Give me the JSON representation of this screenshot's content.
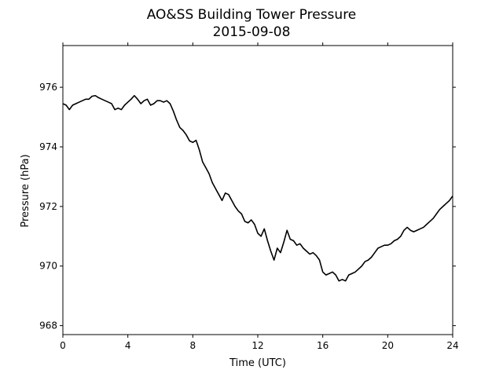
{
  "chart_data": {
    "type": "line",
    "title": "AO&SS Building Tower Pressure",
    "subtitle": "2015-09-08",
    "xlabel": "Time (UTC)",
    "ylabel": "Pressure (hPa)",
    "xlim": [
      0,
      24
    ],
    "ylim": [
      967.7,
      977.4
    ],
    "xticks": [
      0,
      4,
      8,
      12,
      16,
      20,
      24
    ],
    "yticks": [
      968,
      970,
      972,
      974,
      976
    ],
    "grid": false,
    "line_color": "#000000",
    "series": [
      {
        "x": [
          0,
          0.2,
          0.4,
          0.6,
          0.8,
          1.0,
          1.2,
          1.4,
          1.6,
          1.8,
          2.0,
          2.2,
          2.4,
          2.6,
          2.8,
          3.0,
          3.2,
          3.4,
          3.6,
          3.8,
          4.0,
          4.2,
          4.4,
          4.6,
          4.8,
          5.0,
          5.2,
          5.4,
          5.6,
          5.8,
          6.0,
          6.2,
          6.4,
          6.6,
          6.8,
          7.0,
          7.2,
          7.4,
          7.6,
          7.8,
          8.0,
          8.2,
          8.4,
          8.6,
          8.8,
          9.0,
          9.2,
          9.4,
          9.6,
          9.8,
          10.0,
          10.2,
          10.4,
          10.6,
          10.8,
          11.0,
          11.2,
          11.4,
          11.6,
          11.8,
          12.0,
          12.2,
          12.4,
          12.6,
          12.8,
          13.0,
          13.2,
          13.4,
          13.6,
          13.8,
          14.0,
          14.2,
          14.4,
          14.6,
          14.8,
          15.0,
          15.2,
          15.4,
          15.6,
          15.8,
          16.0,
          16.2,
          16.4,
          16.6,
          16.8,
          17.0,
          17.2,
          17.4,
          17.6,
          17.8,
          18.0,
          18.2,
          18.4,
          18.6,
          18.8,
          19.0,
          19.2,
          19.4,
          19.6,
          19.8,
          20.0,
          20.2,
          20.4,
          20.6,
          20.8,
          21.0,
          21.2,
          21.4,
          21.6,
          21.8,
          22.0,
          22.2,
          22.4,
          22.6,
          22.8,
          23.0,
          23.2,
          23.4,
          23.6,
          23.8,
          24.0
        ],
        "y": [
          975.45,
          975.4,
          975.25,
          975.4,
          975.45,
          975.5,
          975.55,
          975.6,
          975.6,
          975.7,
          975.72,
          975.65,
          975.6,
          975.55,
          975.5,
          975.45,
          975.25,
          975.3,
          975.25,
          975.4,
          975.5,
          975.6,
          975.72,
          975.6,
          975.45,
          975.55,
          975.6,
          975.4,
          975.45,
          975.55,
          975.55,
          975.5,
          975.55,
          975.45,
          975.2,
          974.9,
          974.65,
          974.55,
          974.4,
          974.2,
          974.15,
          974.22,
          973.9,
          973.5,
          973.3,
          973.1,
          972.8,
          972.6,
          972.4,
          972.2,
          972.45,
          972.4,
          972.2,
          972.0,
          971.85,
          971.75,
          971.5,
          971.45,
          971.55,
          971.4,
          971.1,
          971.0,
          971.25,
          970.85,
          970.5,
          970.2,
          970.6,
          970.45,
          970.8,
          971.2,
          970.9,
          970.85,
          970.7,
          970.75,
          970.6,
          970.5,
          970.4,
          970.45,
          970.35,
          970.2,
          969.8,
          969.7,
          969.75,
          969.8,
          969.7,
          969.5,
          969.55,
          969.5,
          969.7,
          969.75,
          969.8,
          969.9,
          970.0,
          970.15,
          970.2,
          970.3,
          970.45,
          970.6,
          970.65,
          970.7,
          970.7,
          970.75,
          970.85,
          970.9,
          971.0,
          971.2,
          971.3,
          971.2,
          971.15,
          971.2,
          971.25,
          971.3,
          971.4,
          971.5,
          971.6,
          971.75,
          971.9,
          972.0,
          972.1,
          972.2,
          972.35
        ]
      }
    ]
  }
}
